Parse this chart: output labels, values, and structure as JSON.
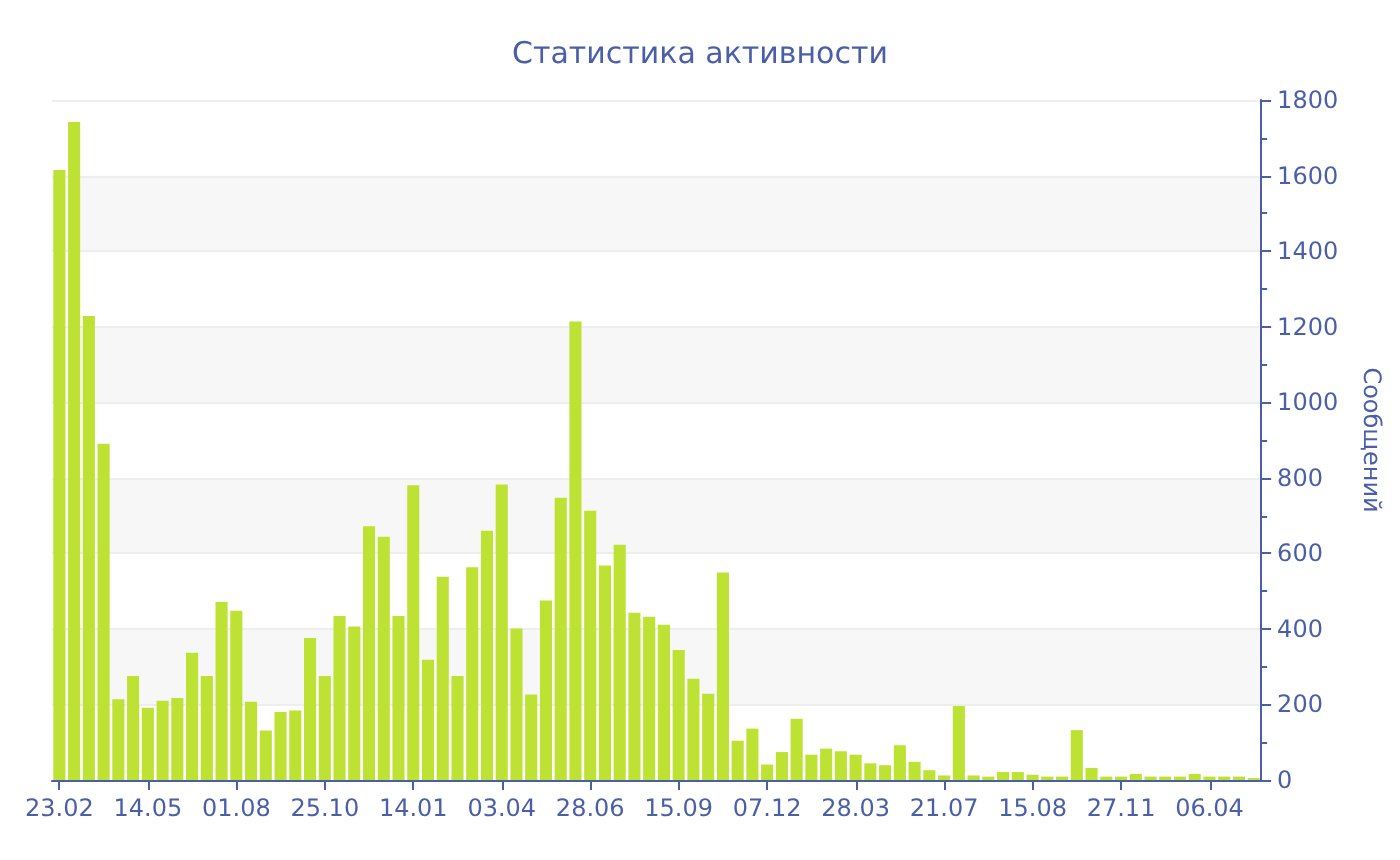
{
  "chart_data": {
    "type": "bar",
    "title": "Статистика активности",
    "ylabel": "Сообщений",
    "categories": [
      "23.02",
      null,
      null,
      null,
      null,
      null,
      "14.05",
      null,
      null,
      null,
      null,
      null,
      "01.08",
      null,
      null,
      null,
      null,
      null,
      "25.10",
      null,
      null,
      null,
      null,
      null,
      "14.01",
      null,
      null,
      null,
      null,
      null,
      "03.04",
      null,
      null,
      null,
      null,
      null,
      "28.06",
      null,
      null,
      null,
      null,
      null,
      "15.09",
      null,
      null,
      null,
      null,
      null,
      "07.12",
      null,
      null,
      null,
      null,
      null,
      "28.03",
      null,
      null,
      null,
      null,
      null,
      "21.07",
      null,
      null,
      null,
      null,
      null,
      "15.08",
      null,
      null,
      null,
      null,
      null,
      "27.11",
      null,
      null,
      null,
      null,
      null,
      "06.04",
      null,
      null,
      null
    ],
    "values": [
      1615,
      1742,
      1228,
      890,
      214,
      275,
      191,
      210,
      217,
      337,
      275,
      471,
      448,
      207,
      131,
      180,
      184,
      376,
      275,
      434,
      406,
      672,
      644,
      434,
      780,
      318,
      538,
      275,
      563,
      660,
      782,
      401,
      226,
      475,
      747,
      1214,
      713,
      568,
      623,
      443,
      432,
      411,
      344,
      268,
      228,
      549,
      104,
      136,
      41,
      74,
      162,
      67,
      83,
      76,
      67,
      44,
      39,
      92,
      48,
      26,
      12,
      196,
      12,
      9,
      21,
      21,
      14,
      9,
      9,
      132,
      32,
      9,
      9,
      16,
      9,
      9,
      9,
      16,
      9,
      9,
      9,
      5
    ],
    "color": "#bde234",
    "ylim": [
      0,
      1800
    ],
    "yticks": [
      0,
      200,
      400,
      600,
      800,
      1000,
      1200,
      1400,
      1600,
      1800
    ],
    "grid": "y"
  }
}
